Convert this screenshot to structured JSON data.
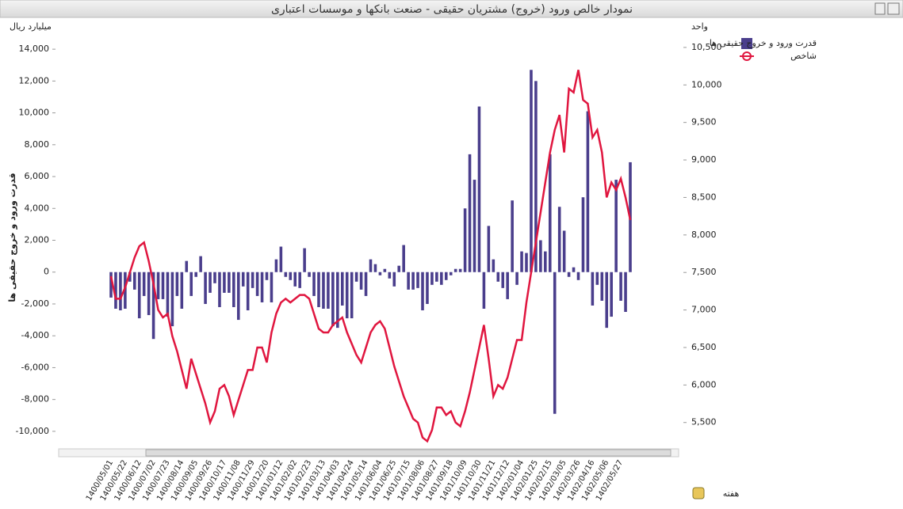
{
  "chart_data": {
    "type": "bar-line",
    "title": "نمودار خالص ورود (خروج) مشتریان حقیقی - صنعت بانکها و موسسات اعتباری",
    "y_unit": "میلیارد ریال",
    "y2_unit": "واحد",
    "y_axis_title": "قدرت ورود و خروج حقیقی ها",
    "x_axis_title": "هفته",
    "categories": [
      "1400/05/01",
      null,
      null,
      "1400/05/22",
      null,
      null,
      "1400/06/12",
      null,
      null,
      "1400/07/02",
      null,
      null,
      "1400/07/23",
      null,
      null,
      "1400/08/14",
      null,
      null,
      "1400/09/05",
      null,
      null,
      "1400/09/26",
      null,
      null,
      "1400/10/17",
      null,
      null,
      "1400/11/08",
      null,
      null,
      "1400/11/29",
      null,
      null,
      "1400/12/20",
      null,
      null,
      "1401/01/12",
      null,
      null,
      "1401/02/02",
      null,
      null,
      "1401/02/23",
      null,
      null,
      "1401/03/13",
      null,
      null,
      "1401/04/03",
      null,
      null,
      "1401/04/24",
      null,
      null,
      "1401/05/14",
      null,
      null,
      "1401/06/04",
      null,
      null,
      "1401/06/25",
      null,
      null,
      "1401/07/15",
      null,
      null,
      "1401/08/06",
      null,
      null,
      "1401/08/27",
      null,
      null,
      "1401/09/18",
      null,
      null,
      "1401/10/09",
      null,
      null,
      "1401/10/30",
      null,
      null,
      "1401/11/21",
      null,
      null,
      "1401/12/12",
      null,
      null,
      "1402/01/04",
      null,
      null,
      "1402/01/25",
      null,
      null,
      "1402/02/15",
      null,
      null,
      "1402/03/05",
      null,
      null,
      "1402/03/26",
      null,
      null,
      "1402/04/16",
      null,
      null,
      "1402/05/06",
      null,
      null,
      "1402/05/27",
      null,
      null
    ],
    "series": [
      {
        "name": "قدرت ورود و خروج حقیقی ها",
        "color": "#4a3e8c",
        "kind": "bar",
        "values": [
          -1600,
          -2300,
          -2400,
          -2300,
          -600,
          -1100,
          -2900,
          -1500,
          -2700,
          -4200,
          -1700,
          -1700,
          -2800,
          -3400,
          -1500,
          -2300,
          700,
          -1500,
          -300,
          1000,
          -2000,
          -1300,
          -700,
          -2200,
          -1300,
          -1300,
          -2200,
          -3000,
          -900,
          -2400,
          -1000,
          -1500,
          -1900,
          -500,
          -1900,
          800,
          1600,
          -300,
          -500,
          -900,
          -1000,
          1500,
          -300,
          -1500,
          -2200,
          -2300,
          -2300,
          -3400,
          -3500,
          -2100,
          -2900,
          -2900,
          -600,
          -1100,
          -1500,
          800,
          500,
          -200,
          200,
          -400,
          -900,
          400,
          1700,
          -1100,
          -1100,
          -1000,
          -2400,
          -2000,
          -800,
          -600,
          -800,
          -500,
          -200,
          200,
          200,
          4000,
          7400,
          5800,
          10400,
          -2300,
          2900,
          800,
          -600,
          -1000,
          -1700,
          4500,
          -800,
          1300,
          1200,
          12700,
          12000,
          2000,
          1300,
          7400,
          -8900,
          4100,
          2600,
          -300,
          300,
          -500,
          4700,
          10100,
          -2100,
          -800,
          -1800,
          -3500,
          -2800,
          5800,
          -1800,
          -2500,
          6900
        ]
      },
      {
        "name": "شاخص",
        "color": "#e0163f",
        "kind": "line",
        "axis": "y2",
        "values": [
          7450,
          7150,
          7150,
          7300,
          7500,
          7700,
          7850,
          7900,
          7650,
          7350,
          7000,
          6900,
          6950,
          6650,
          6450,
          6200,
          5950,
          6350,
          6150,
          5950,
          5750,
          5500,
          5650,
          5950,
          6000,
          5850,
          5600,
          5800,
          6000,
          6200,
          6200,
          6500,
          6500,
          6300,
          6700,
          6950,
          7100,
          7150,
          7100,
          7150,
          7200,
          7200,
          7150,
          6950,
          6750,
          6700,
          6700,
          6800,
          6850,
          6900,
          6700,
          6550,
          6400,
          6300,
          6500,
          6700,
          6800,
          6850,
          6750,
          6500,
          6250,
          6050,
          5850,
          5700,
          5550,
          5500,
          5300,
          5250,
          5400,
          5700,
          5700,
          5600,
          5650,
          5500,
          5450,
          5650,
          5900,
          6200,
          6500,
          6800,
          6350,
          5850,
          6000,
          5950,
          6100,
          6350,
          6600,
          6600,
          7100,
          7500,
          7900,
          8300,
          8700,
          9100,
          9400,
          9600,
          9100,
          9950,
          9900,
          10200,
          9800,
          9750,
          9300,
          9400,
          9100,
          8500,
          8700,
          8600,
          8750,
          8500,
          8200
        ]
      }
    ],
    "ylim": [
      -11000,
      15100
    ],
    "yticks": [
      {
        "value": -10000,
        "label": "-10,000"
      },
      {
        "value": -8000,
        "label": "-8,000"
      },
      {
        "value": -6000,
        "label": "-6,000"
      },
      {
        "value": -4000,
        "label": "-4,000"
      },
      {
        "value": -2000,
        "label": "-2,000"
      },
      0,
      {
        "value": 2000,
        "label": "2,000"
      },
      {
        "value": 4000,
        "label": "4,000"
      },
      {
        "value": 6000,
        "label": "6,000"
      },
      {
        "value": 8000,
        "label": "8,000"
      },
      {
        "value": 10000,
        "label": "10,000"
      },
      {
        "value": 12000,
        "label": "12,000"
      },
      {
        "value": 14000,
        "label": "14,000"
      }
    ],
    "y2lim": [
      5170,
      10710
    ],
    "y2ticks": [
      {
        "value": 5500,
        "label": "5,500"
      },
      {
        "value": 6000,
        "label": "6,000"
      },
      {
        "value": 6500,
        "label": "6,500"
      },
      {
        "value": 7000,
        "label": "7,000"
      },
      {
        "value": 7500,
        "label": "7,500"
      },
      {
        "value": 8000,
        "label": "8,000"
      },
      {
        "value": 8500,
        "label": "8,500"
      },
      {
        "value": 9000,
        "label": "9,000"
      },
      {
        "value": 9500,
        "label": "9,500"
      },
      {
        "value": 10000,
        "label": "10,000"
      },
      {
        "value": 10500,
        "label": "10,500"
      }
    ],
    "legend": "top-right"
  }
}
